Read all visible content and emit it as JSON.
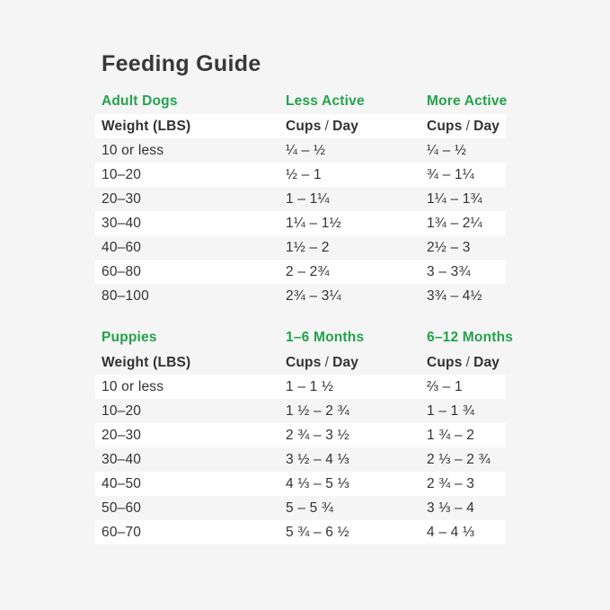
{
  "title": "Feeding Guide",
  "labels": {
    "weight": "Weight (LBS)",
    "cups": "Cups",
    "slash": "/",
    "day": "Day"
  },
  "colors": {
    "accent_green": "#23a24b",
    "background": "#f5f5f6",
    "row_highlight": "#ffffff",
    "text": "#323234"
  },
  "sections": [
    {
      "name": "Adult Dogs",
      "columns": [
        "Less Active",
        "More Active"
      ],
      "rows": [
        {
          "weight": "10 or less",
          "cups_a": "¼ – ½",
          "cups_b": "¼ – ½"
        },
        {
          "weight": "10–20",
          "cups_a": "½ – 1",
          "cups_b": "¾ – 1¼"
        },
        {
          "weight": "20–30",
          "cups_a": "1 – 1¼",
          "cups_b": "1¼ – 1¾"
        },
        {
          "weight": "30–40",
          "cups_a": "1¼ – 1½",
          "cups_b": "1¾ – 2¼"
        },
        {
          "weight": "40–60",
          "cups_a": "1½ – 2",
          "cups_b": "2½ – 3"
        },
        {
          "weight": "60–80",
          "cups_a": "2 – 2¾",
          "cups_b": "3 – 3¾"
        },
        {
          "weight": "80–100",
          "cups_a": "2¾ – 3¼",
          "cups_b": "3¾ – 4½"
        }
      ]
    },
    {
      "name": "Puppies",
      "columns": [
        "1–6 Months",
        "6–12 Months"
      ],
      "rows": [
        {
          "weight": "10 or less",
          "cups_a": "1 – 1 ½",
          "cups_b": "⅔ – 1"
        },
        {
          "weight": "10–20",
          "cups_a": "1 ½ – 2 ¾",
          "cups_b": "1 – 1 ¾"
        },
        {
          "weight": "20–30",
          "cups_a": "2 ¾ – 3 ½",
          "cups_b": "1 ¾ – 2"
        },
        {
          "weight": "30–40",
          "cups_a": "3 ½ – 4 ⅓",
          "cups_b": "2 ⅓ – 2 ¾"
        },
        {
          "weight": "40–50",
          "cups_a": "4 ⅓ – 5 ⅓",
          "cups_b": "2 ¾ – 3"
        },
        {
          "weight": "50–60",
          "cups_a": "5 – 5 ¾",
          "cups_b": "3 ⅓ – 4"
        },
        {
          "weight": "60–70",
          "cups_a": "5 ¾ – 6 ½",
          "cups_b": "4 – 4 ⅓"
        }
      ]
    }
  ]
}
